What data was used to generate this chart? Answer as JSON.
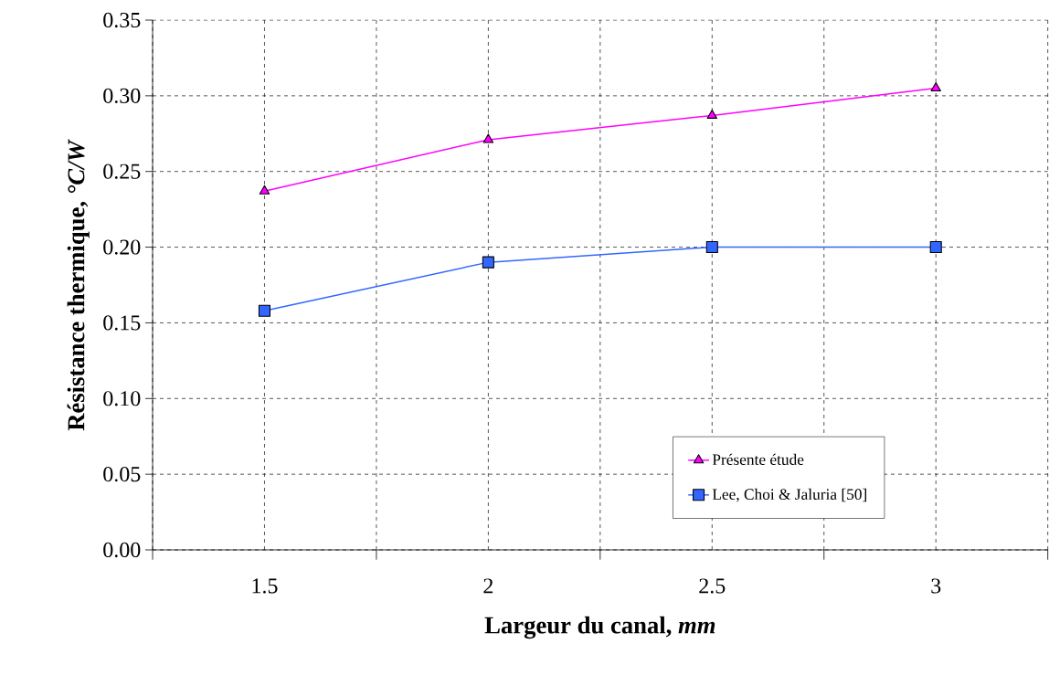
{
  "chart_data": {
    "type": "line",
    "xlabel": "Largeur du canal, *mm*",
    "ylabel": "Résistance thermique, *°C/W*",
    "categories": [
      "1.5",
      "2",
      "2.5",
      "3"
    ],
    "series": [
      {
        "name": "Présente étude",
        "color": "#ff00ff",
        "marker": "triangle",
        "values": [
          0.237,
          0.271,
          0.287,
          0.305
        ]
      },
      {
        "name": "Lee, Choi & Jaluria [50]",
        "color": "#3366ff",
        "marker": "square",
        "values": [
          0.158,
          0.19,
          0.2,
          0.2
        ]
      }
    ],
    "ylim": [
      0,
      0.35
    ],
    "yticks": [
      {
        "value": 0,
        "label": "0.00"
      },
      {
        "value": 0.05,
        "label": "0.05"
      },
      {
        "value": 0.1,
        "label": "0.10"
      },
      {
        "value": 0.15,
        "label": "0.15"
      },
      {
        "value": 0.2,
        "label": "0.20"
      },
      {
        "value": 0.25,
        "label": "0.25"
      },
      {
        "value": 0.3,
        "label": "0.30"
      },
      {
        "value": 0.35,
        "label": "0.35"
      }
    ],
    "grid": true,
    "legend": "bottom right",
    "line_style": "solid"
  }
}
